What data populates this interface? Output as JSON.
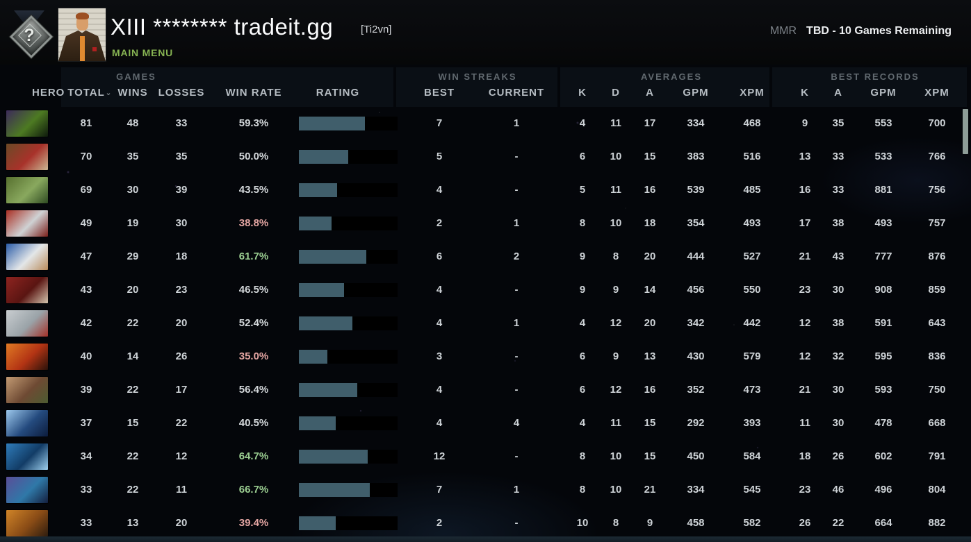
{
  "header": {
    "rank_icon_glyph": "?",
    "player_name": "XIII ******** tradeit.gg",
    "player_tag": "[Ti2vn]",
    "menu_label": "MAIN MENU",
    "mmr_label": "MMR",
    "mmr_value": "TBD - 10 Games Remaining"
  },
  "table": {
    "groups": {
      "games": "GAMES",
      "win_streaks": "WIN STREAKS",
      "averages": "AVERAGES",
      "best_records": "BEST RECORDS"
    },
    "columns": {
      "hero": "HERO",
      "total": "TOTAL",
      "wins": "WINS",
      "losses": "LOSSES",
      "win_rate": "WIN RATE",
      "rating": "RATING",
      "best": "BEST",
      "current": "CURRENT",
      "k": "K",
      "d": "D",
      "a": "A",
      "gpm": "GPM",
      "xpm": "XPM"
    },
    "sort_icon": "⌄"
  },
  "colors": {
    "bar_fill": "#405e6b",
    "win_rate_pos": "#9ccf92",
    "win_rate_neg": "#e3a5a2",
    "accent_green": "#86b352"
  },
  "rows": [
    {
      "total": "81",
      "wins": "48",
      "losses": "33",
      "win_rate": "59.3%",
      "tone": "neutral",
      "rating_pct": 67,
      "streak_best": "7",
      "streak_current": "1",
      "avg_k": "4",
      "avg_d": "11",
      "avg_a": "17",
      "avg_gpm": "334",
      "avg_xpm": "468",
      "best_k": "9",
      "best_a": "35",
      "best_gpm": "553",
      "best_xpm": "700",
      "portrait": [
        "#3c2a5a",
        "#4d7a22",
        "#0e1a0c"
      ]
    },
    {
      "total": "70",
      "wins": "35",
      "losses": "35",
      "win_rate": "50.0%",
      "tone": "neutral",
      "rating_pct": 50,
      "streak_best": "5",
      "streak_current": "-",
      "avg_k": "6",
      "avg_d": "10",
      "avg_a": "15",
      "avg_gpm": "383",
      "avg_xpm": "516",
      "best_k": "13",
      "best_a": "33",
      "best_gpm": "533",
      "best_xpm": "766",
      "portrait": [
        "#6b4a26",
        "#a8322a",
        "#c9b693"
      ]
    },
    {
      "total": "69",
      "wins": "30",
      "losses": "39",
      "win_rate": "43.5%",
      "tone": "neutral",
      "rating_pct": 39,
      "streak_best": "4",
      "streak_current": "-",
      "avg_k": "5",
      "avg_d": "11",
      "avg_a": "16",
      "avg_gpm": "539",
      "avg_xpm": "485",
      "best_k": "16",
      "best_a": "33",
      "best_gpm": "881",
      "best_xpm": "756",
      "portrait": [
        "#57702f",
        "#89a85e",
        "#2f4b22"
      ]
    },
    {
      "total": "49",
      "wins": "19",
      "losses": "30",
      "win_rate": "38.8%",
      "tone": "neg",
      "rating_pct": 33,
      "streak_best": "2",
      "streak_current": "1",
      "avg_k": "8",
      "avg_d": "10",
      "avg_a": "18",
      "avg_gpm": "354",
      "avg_xpm": "493",
      "best_k": "17",
      "best_a": "38",
      "best_gpm": "493",
      "best_xpm": "757",
      "portrait": [
        "#aa2f24",
        "#cfd2d4",
        "#7a1f1a"
      ]
    },
    {
      "total": "47",
      "wins": "29",
      "losses": "18",
      "win_rate": "61.7%",
      "tone": "pos",
      "rating_pct": 68,
      "streak_best": "6",
      "streak_current": "2",
      "avg_k": "9",
      "avg_d": "8",
      "avg_a": "20",
      "avg_gpm": "444",
      "avg_xpm": "527",
      "best_k": "21",
      "best_a": "43",
      "best_gpm": "777",
      "best_xpm": "876",
      "portrait": [
        "#2b5ca8",
        "#e3e6e8",
        "#b98c5c"
      ]
    },
    {
      "total": "43",
      "wins": "20",
      "losses": "23",
      "win_rate": "46.5%",
      "tone": "neutral",
      "rating_pct": 46,
      "streak_best": "4",
      "streak_current": "-",
      "avg_k": "9",
      "avg_d": "9",
      "avg_a": "14",
      "avg_gpm": "456",
      "avg_xpm": "550",
      "best_k": "23",
      "best_a": "30",
      "best_gpm": "908",
      "best_xpm": "859",
      "portrait": [
        "#8e2420",
        "#5a1512",
        "#d3c5ae"
      ]
    },
    {
      "total": "42",
      "wins": "22",
      "losses": "20",
      "win_rate": "52.4%",
      "tone": "neutral",
      "rating_pct": 54,
      "streak_best": "4",
      "streak_current": "1",
      "avg_k": "4",
      "avg_d": "12",
      "avg_a": "20",
      "avg_gpm": "342",
      "avg_xpm": "442",
      "best_k": "12",
      "best_a": "38",
      "best_gpm": "591",
      "best_xpm": "643",
      "portrait": [
        "#c9cdd0",
        "#9aa3a8",
        "#a33129"
      ]
    },
    {
      "total": "40",
      "wins": "14",
      "losses": "26",
      "win_rate": "35.0%",
      "tone": "neg",
      "rating_pct": 29,
      "streak_best": "3",
      "streak_current": "-",
      "avg_k": "6",
      "avg_d": "9",
      "avg_a": "13",
      "avg_gpm": "430",
      "avg_xpm": "579",
      "best_k": "12",
      "best_a": "32",
      "best_gpm": "595",
      "best_xpm": "836",
      "portrait": [
        "#e07a24",
        "#b33414",
        "#2a120a"
      ]
    },
    {
      "total": "39",
      "wins": "22",
      "losses": "17",
      "win_rate": "56.4%",
      "tone": "neutral",
      "rating_pct": 59,
      "streak_best": "4",
      "streak_current": "-",
      "avg_k": "6",
      "avg_d": "12",
      "avg_a": "16",
      "avg_gpm": "352",
      "avg_xpm": "473",
      "best_k": "21",
      "best_a": "30",
      "best_gpm": "593",
      "best_xpm": "750",
      "portrait": [
        "#c29a73",
        "#6e4a33",
        "#4c5c32"
      ]
    },
    {
      "total": "37",
      "wins": "15",
      "losses": "22",
      "win_rate": "40.5%",
      "tone": "neutral",
      "rating_pct": 37,
      "streak_best": "4",
      "streak_current": "4",
      "avg_k": "4",
      "avg_d": "11",
      "avg_a": "15",
      "avg_gpm": "292",
      "avg_xpm": "393",
      "best_k": "11",
      "best_a": "30",
      "best_gpm": "478",
      "best_xpm": "668",
      "portrait": [
        "#9cc8ec",
        "#244a7e",
        "#0c1c3c"
      ]
    },
    {
      "total": "34",
      "wins": "22",
      "losses": "12",
      "win_rate": "64.7%",
      "tone": "pos",
      "rating_pct": 70,
      "streak_best": "12",
      "streak_current": "-",
      "avg_k": "8",
      "avg_d": "10",
      "avg_a": "15",
      "avg_gpm": "450",
      "avg_xpm": "584",
      "best_k": "18",
      "best_a": "26",
      "best_gpm": "602",
      "best_xpm": "791",
      "portrait": [
        "#2f7cba",
        "#123c66",
        "#9ed0ee"
      ]
    },
    {
      "total": "33",
      "wins": "22",
      "losses": "11",
      "win_rate": "66.7%",
      "tone": "pos",
      "rating_pct": 72,
      "streak_best": "7",
      "streak_current": "1",
      "avg_k": "8",
      "avg_d": "10",
      "avg_a": "21",
      "avg_gpm": "334",
      "avg_xpm": "545",
      "best_k": "23",
      "best_a": "46",
      "best_gpm": "496",
      "best_xpm": "804",
      "portrait": [
        "#5a4e98",
        "#2f78a8",
        "#141f3e"
      ]
    },
    {
      "total": "33",
      "wins": "13",
      "losses": "20",
      "win_rate": "39.4%",
      "tone": "neg",
      "rating_pct": 37,
      "streak_best": "2",
      "streak_current": "-",
      "avg_k": "10",
      "avg_d": "8",
      "avg_a": "9",
      "avg_gpm": "458",
      "avg_xpm": "582",
      "best_k": "26",
      "best_a": "22",
      "best_gpm": "664",
      "best_xpm": "882",
      "portrait": [
        "#d08428",
        "#8a4c16",
        "#2e1c0e"
      ]
    }
  ]
}
